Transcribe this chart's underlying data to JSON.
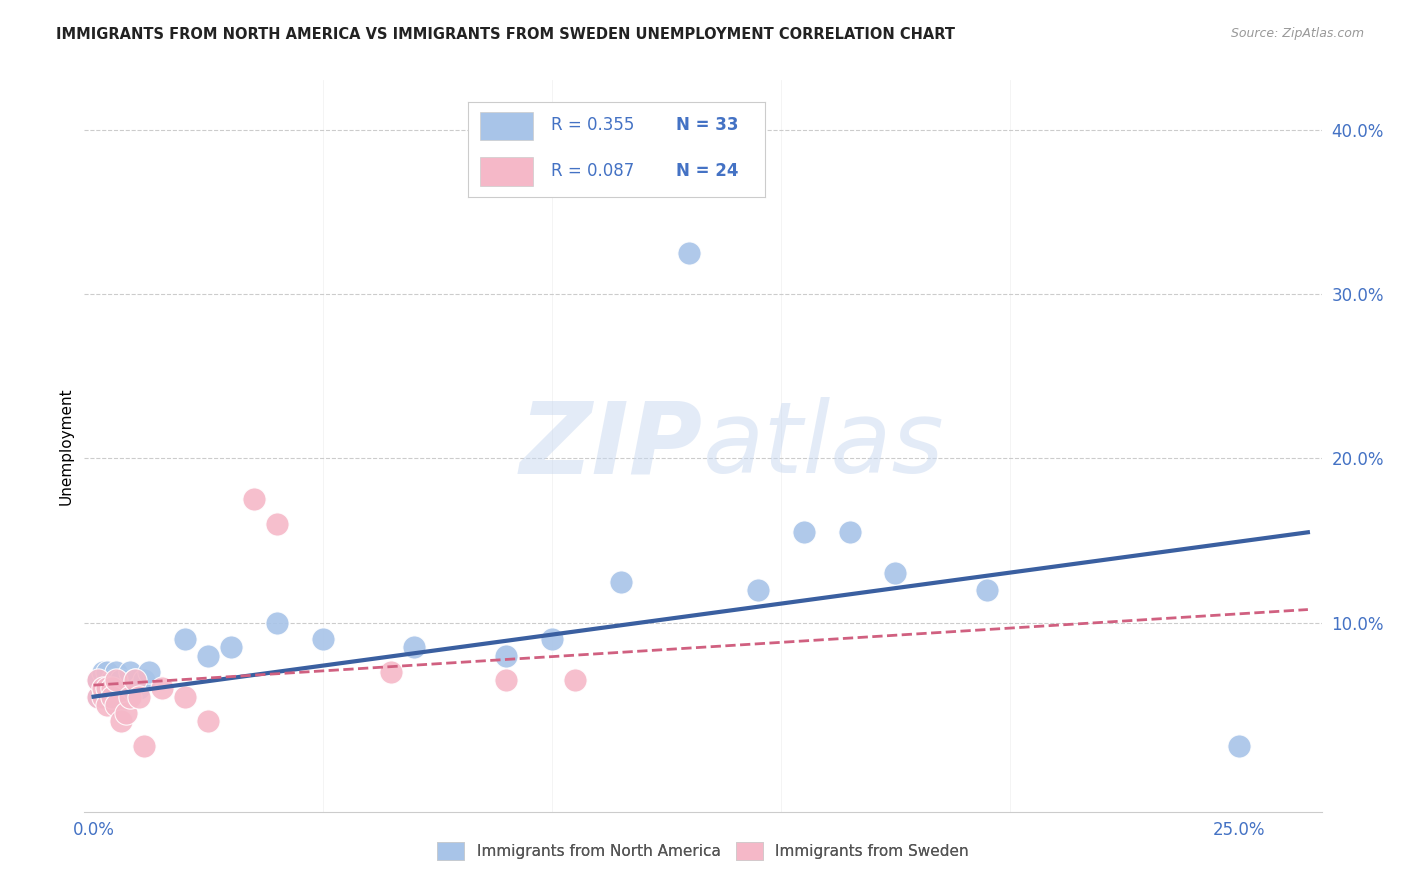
{
  "title": "IMMIGRANTS FROM NORTH AMERICA VS IMMIGRANTS FROM SWEDEN UNEMPLOYMENT CORRELATION CHART",
  "source": "Source: ZipAtlas.com",
  "ylabel": "Unemployment",
  "x_ticks": [
    0.0,
    0.05,
    0.1,
    0.15,
    0.2,
    0.25
  ],
  "y_ticks_right": [
    0.0,
    0.1,
    0.2,
    0.3,
    0.4
  ],
  "xlim": [
    -0.002,
    0.268
  ],
  "ylim": [
    -0.015,
    0.43
  ],
  "title_fontsize": 10.5,
  "source_fontsize": 9,
  "color_blue": "#a8c4e8",
  "color_blue_dark": "#3a5fa0",
  "color_pink": "#f5b8c8",
  "color_pink_dark": "#d06080",
  "color_axis": "#4472c4",
  "color_grid": "#cccccc",
  "watermark_zip": "ZIP",
  "watermark_atlas": "atlas",
  "blue_scatter_x": [
    0.001,
    0.001,
    0.002,
    0.002,
    0.003,
    0.003,
    0.004,
    0.004,
    0.005,
    0.005,
    0.006,
    0.007,
    0.008,
    0.009,
    0.01,
    0.011,
    0.012,
    0.02,
    0.025,
    0.03,
    0.04,
    0.05,
    0.07,
    0.09,
    0.1,
    0.115,
    0.13,
    0.145,
    0.155,
    0.165,
    0.175,
    0.195,
    0.25
  ],
  "blue_scatter_y": [
    0.055,
    0.065,
    0.06,
    0.07,
    0.06,
    0.07,
    0.055,
    0.065,
    0.06,
    0.07,
    0.065,
    0.06,
    0.07,
    0.065,
    0.06,
    0.065,
    0.07,
    0.09,
    0.08,
    0.085,
    0.1,
    0.09,
    0.085,
    0.08,
    0.09,
    0.125,
    0.325,
    0.12,
    0.155,
    0.155,
    0.13,
    0.12,
    0.025
  ],
  "pink_scatter_x": [
    0.001,
    0.001,
    0.002,
    0.002,
    0.003,
    0.003,
    0.004,
    0.004,
    0.005,
    0.005,
    0.006,
    0.007,
    0.008,
    0.009,
    0.01,
    0.011,
    0.015,
    0.02,
    0.025,
    0.035,
    0.04,
    0.065,
    0.09,
    0.105
  ],
  "pink_scatter_y": [
    0.055,
    0.065,
    0.055,
    0.06,
    0.06,
    0.05,
    0.06,
    0.055,
    0.065,
    0.05,
    0.04,
    0.045,
    0.055,
    0.065,
    0.055,
    0.025,
    0.06,
    0.055,
    0.04,
    0.175,
    0.16,
    0.07,
    0.065,
    0.065
  ],
  "blue_line_x": [
    0.0,
    0.265
  ],
  "blue_line_y": [
    0.055,
    0.155
  ],
  "pink_line_x": [
    0.0,
    0.265
  ],
  "pink_line_y": [
    0.062,
    0.108
  ],
  "legend_label1": "Immigrants from North America",
  "legend_label2": "Immigrants from Sweden"
}
